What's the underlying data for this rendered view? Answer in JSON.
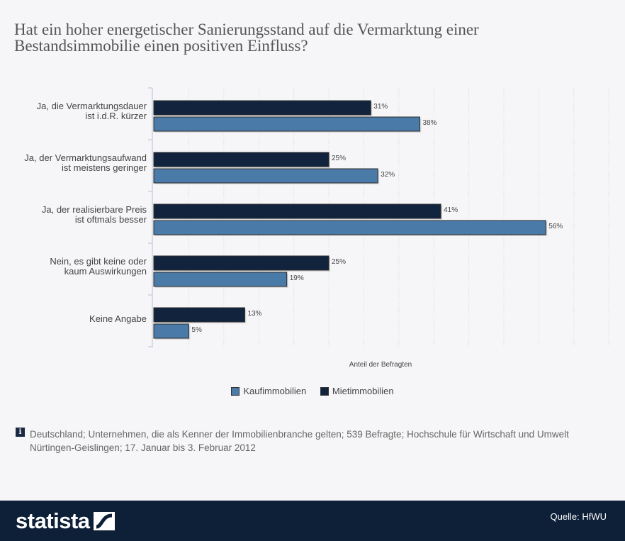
{
  "title": "Hat ein hoher energetischer Sanierungsstand auf die Vermarktung einer Bestandsimmobilie einen positiven Einfluss?",
  "chart_data": {
    "type": "bar",
    "orientation": "horizontal",
    "categories": [
      [
        "Ja, die Vermarktungsdauer",
        "ist i.d.R. kürzer"
      ],
      [
        "Ja, der Vermarktungsaufwand",
        "ist meistens geringer"
      ],
      [
        "Ja, der realisierbare Preis",
        "ist oftmals besser"
      ],
      [
        "Nein, es gibt keine oder",
        "kaum Auswirkungen"
      ],
      [
        "Keine Angabe"
      ]
    ],
    "series": [
      {
        "name": "Mietimmobilien",
        "color": "#12243d",
        "values": [
          31,
          25,
          41,
          25,
          13
        ],
        "labels": [
          "31%",
          "25%",
          "41%",
          "25%",
          "13%"
        ]
      },
      {
        "name": "Kaufimmobilien",
        "color": "#4a7aa8",
        "values": [
          38,
          32,
          56,
          19,
          5
        ],
        "labels": [
          "38%",
          "32%",
          "56%",
          "19%",
          "5%"
        ]
      }
    ],
    "xlabel": "Anteil der Befragten",
    "xlim": [
      0,
      65
    ],
    "grid": true
  },
  "legend": {
    "items": [
      {
        "label": "Kaufimmobilien",
        "color": "#4a7aa8"
      },
      {
        "label": "Mietimmobilien",
        "color": "#12243d"
      }
    ]
  },
  "footnote": {
    "icon": "info-icon",
    "icon_glyph": "i",
    "text": "Deutschland; Unternehmen, die als Kenner der Immobilienbranche gelten; 539 Befragte; Hochschule für Wirtschaft und Umwelt Nürtingen-Geislingen; 17. Januar bis 3. Februar 2012"
  },
  "footer": {
    "logo": "statista",
    "source": "Quelle: HfWU"
  }
}
